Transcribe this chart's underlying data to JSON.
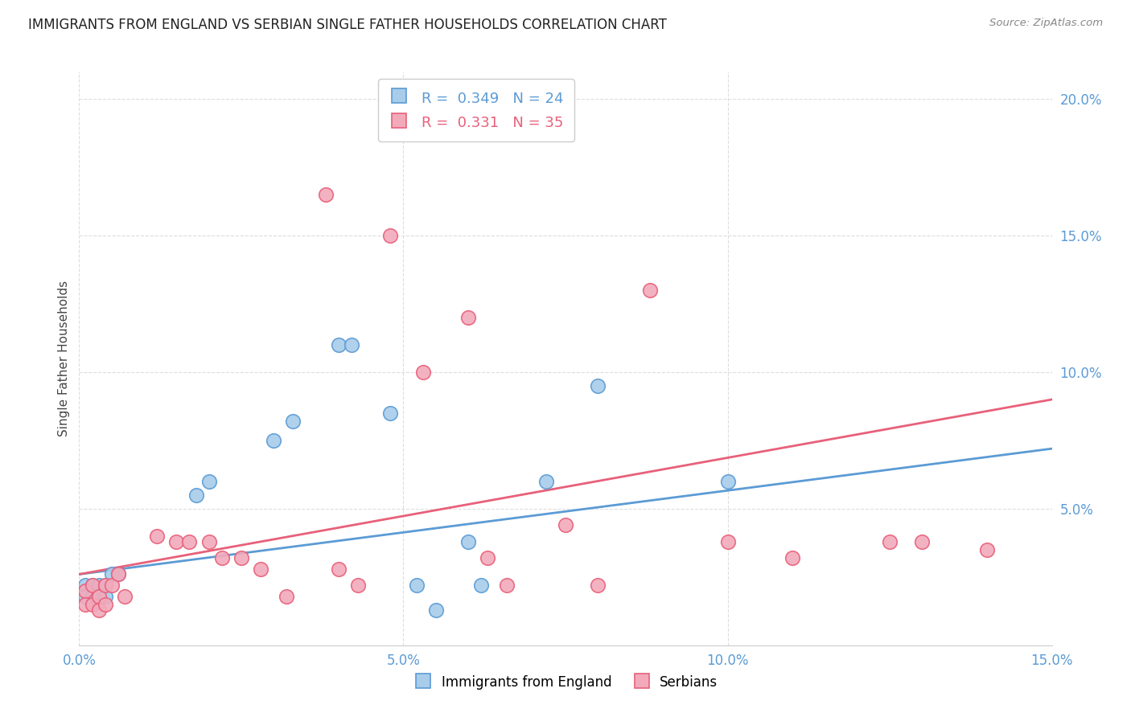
{
  "title": "IMMIGRANTS FROM ENGLAND VS SERBIAN SINGLE FATHER HOUSEHOLDS CORRELATION CHART",
  "source": "Source: ZipAtlas.com",
  "ylabel": "Single Father Households",
  "xmin": 0.0,
  "xmax": 0.15,
  "ymin": 0.0,
  "ymax": 0.21,
  "yticks": [
    0.0,
    0.05,
    0.1,
    0.15,
    0.2
  ],
  "ytick_labels": [
    "",
    "5.0%",
    "10.0%",
    "15.0%",
    "20.0%"
  ],
  "xticks": [
    0.0,
    0.05,
    0.1,
    0.15
  ],
  "xtick_labels": [
    "0.0%",
    "5.0%",
    "10.0%",
    "15.0%"
  ],
  "legend1_label": "Immigrants from England",
  "legend2_label": "Serbians",
  "r1": 0.349,
  "n1": 24,
  "r2": 0.331,
  "n2": 35,
  "color_blue": "#A8CCEA",
  "color_pink": "#F2AABB",
  "color_blue_line": "#5B9BD5",
  "color_pink_line": "#E8607A",
  "blue_points": [
    [
      0.001,
      0.022
    ],
    [
      0.001,
      0.018
    ],
    [
      0.002,
      0.022
    ],
    [
      0.002,
      0.018
    ],
    [
      0.003,
      0.022
    ],
    [
      0.003,
      0.018
    ],
    [
      0.004,
      0.022
    ],
    [
      0.004,
      0.018
    ],
    [
      0.005,
      0.026
    ],
    [
      0.006,
      0.026
    ],
    [
      0.018,
      0.055
    ],
    [
      0.02,
      0.06
    ],
    [
      0.03,
      0.075
    ],
    [
      0.033,
      0.082
    ],
    [
      0.04,
      0.11
    ],
    [
      0.042,
      0.11
    ],
    [
      0.048,
      0.085
    ],
    [
      0.052,
      0.022
    ],
    [
      0.055,
      0.013
    ],
    [
      0.06,
      0.038
    ],
    [
      0.062,
      0.022
    ],
    [
      0.072,
      0.06
    ],
    [
      0.08,
      0.095
    ],
    [
      0.1,
      0.06
    ]
  ],
  "pink_points": [
    [
      0.001,
      0.02
    ],
    [
      0.001,
      0.015
    ],
    [
      0.002,
      0.022
    ],
    [
      0.002,
      0.015
    ],
    [
      0.003,
      0.018
    ],
    [
      0.003,
      0.013
    ],
    [
      0.004,
      0.022
    ],
    [
      0.004,
      0.015
    ],
    [
      0.005,
      0.022
    ],
    [
      0.006,
      0.026
    ],
    [
      0.007,
      0.018
    ],
    [
      0.012,
      0.04
    ],
    [
      0.015,
      0.038
    ],
    [
      0.017,
      0.038
    ],
    [
      0.02,
      0.038
    ],
    [
      0.022,
      0.032
    ],
    [
      0.025,
      0.032
    ],
    [
      0.028,
      0.028
    ],
    [
      0.032,
      0.018
    ],
    [
      0.038,
      0.165
    ],
    [
      0.04,
      0.028
    ],
    [
      0.043,
      0.022
    ],
    [
      0.048,
      0.15
    ],
    [
      0.053,
      0.1
    ],
    [
      0.06,
      0.12
    ],
    [
      0.063,
      0.032
    ],
    [
      0.066,
      0.022
    ],
    [
      0.075,
      0.044
    ],
    [
      0.08,
      0.022
    ],
    [
      0.088,
      0.13
    ],
    [
      0.1,
      0.038
    ],
    [
      0.11,
      0.032
    ],
    [
      0.125,
      0.038
    ],
    [
      0.13,
      0.038
    ],
    [
      0.14,
      0.035
    ]
  ],
  "blue_line": [
    [
      0.0,
      0.026
    ],
    [
      0.15,
      0.072
    ]
  ],
  "pink_line": [
    [
      0.0,
      0.026
    ],
    [
      0.15,
      0.09
    ]
  ]
}
